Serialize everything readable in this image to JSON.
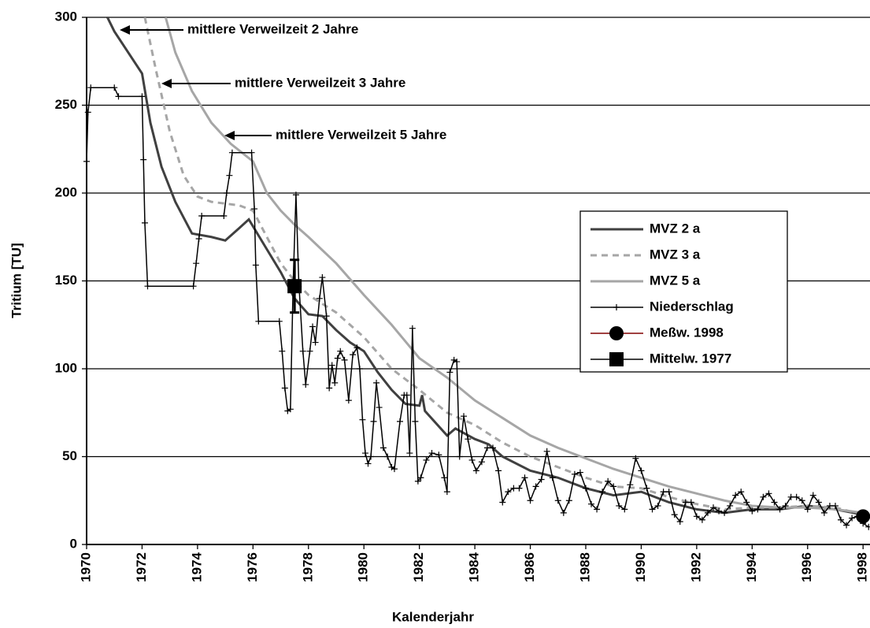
{
  "chart_data": {
    "type": "line",
    "x_label": "Kalenderjahr",
    "y_label": "Tritium [TU]",
    "xlim": [
      1970,
      1998.25
    ],
    "ylim": [
      0,
      300
    ],
    "xticks": [
      1970,
      1972,
      1974,
      1976,
      1978,
      1980,
      1982,
      1984,
      1986,
      1988,
      1990,
      1992,
      1994,
      1996,
      1998
    ],
    "yticks": [
      0,
      50,
      100,
      150,
      200,
      250,
      300
    ],
    "grid": true,
    "legend": "right",
    "annotations": [
      {
        "text": "mittlere Verweilzeit 2 Jahre"
      },
      {
        "text": "mittlere Verweilzeit 3 Jahre"
      },
      {
        "text": "mittlere Verweilzeit 5 Jahre"
      }
    ],
    "series": [
      {
        "name": "MVZ 2 a",
        "color": "#404040",
        "dash": "solid",
        "x": [
          1970.75,
          1971.0,
          1971.5,
          1972.0,
          1972.3,
          1972.7,
          1973.2,
          1973.8,
          1974.5,
          1975.0,
          1975.5,
          1975.85,
          1976.5,
          1977.0,
          1977.5,
          1978.0,
          1978.5,
          1979.0,
          1979.5,
          1980.0,
          1980.5,
          1981.0,
          1981.5,
          1982.0,
          1982.1,
          1982.2,
          1983.0,
          1983.3,
          1984.0,
          1984.5,
          1985.0,
          1986.0,
          1987.0,
          1988.0,
          1989.0,
          1990.0,
          1991.0,
          1992.0,
          1993.0,
          1994.0,
          1995.0,
          1996.0,
          1997.0,
          1998.0
        ],
        "values": [
          300,
          292,
          280,
          268,
          240,
          215,
          195,
          177,
          175,
          173,
          180,
          185,
          168,
          155,
          140,
          131,
          130,
          122,
          115,
          110,
          98,
          88,
          80,
          79,
          85,
          76,
          62,
          66,
          60,
          57,
          50,
          42,
          38,
          32,
          28,
          30,
          24,
          20,
          18,
          20,
          20,
          22,
          20,
          17
        ]
      },
      {
        "name": "MVZ 3 a",
        "color": "#a6a6a6",
        "dash": "dash",
        "x": [
          1972.1,
          1972.5,
          1973.0,
          1973.5,
          1974.0,
          1974.5,
          1975.0,
          1975.5,
          1976.0,
          1976.5,
          1977.0,
          1977.5,
          1978.0,
          1979.0,
          1980.0,
          1981.0,
          1982.0,
          1983.0,
          1984.0,
          1985.0,
          1986.0,
          1987.0,
          1988.0,
          1989.0,
          1990.0,
          1991.0,
          1992.0,
          1993.0,
          1994.0,
          1995.0,
          1996.0,
          1997.0,
          1998.0
        ],
        "values": [
          300,
          270,
          235,
          210,
          198,
          195,
          194,
          193,
          190,
          175,
          160,
          150,
          142,
          132,
          118,
          100,
          88,
          75,
          68,
          58,
          50,
          44,
          38,
          33,
          32,
          27,
          23,
          20,
          21,
          21,
          22,
          21,
          17
        ]
      },
      {
        "name": "MVZ 5 a",
        "color": "#a6a6a6",
        "dash": "solid",
        "x": [
          1972.85,
          1973.2,
          1973.8,
          1974.5,
          1975.2,
          1976.0,
          1976.5,
          1977.0,
          1977.5,
          1978.0,
          1979.0,
          1980.0,
          1981.0,
          1982.0,
          1983.0,
          1984.0,
          1985.0,
          1986.0,
          1987.0,
          1988.0,
          1989.0,
          1990.0,
          1991.0,
          1992.0,
          1993.0,
          1994.0,
          1995.0,
          1996.0,
          1997.0,
          1998.0
        ],
        "values": [
          300,
          280,
          258,
          240,
          228,
          218,
          200,
          190,
          182,
          175,
          160,
          142,
          125,
          106,
          95,
          82,
          72,
          62,
          55,
          49,
          43,
          38,
          33,
          29,
          25,
          22,
          21,
          21,
          20,
          18
        ]
      },
      {
        "name": "Niederschlag",
        "color": "#000000",
        "marker": "plus",
        "x": [
          1970.0,
          1970.05,
          1970.15,
          1971.0,
          1971.15,
          1972.0,
          1972.05,
          1972.1,
          1972.2,
          1973.85,
          1973.95,
          1974.05,
          1974.15,
          1974.95,
          1975.05,
          1975.15,
          1975.25,
          1975.95,
          1976.05,
          1976.1,
          1976.2,
          1976.95,
          1977.05,
          1977.15,
          1977.25,
          1977.35,
          1977.45,
          1977.55,
          1977.65,
          1977.8,
          1977.9,
          1978.05,
          1978.15,
          1978.25,
          1978.4,
          1978.5,
          1978.65,
          1978.75,
          1978.85,
          1978.95,
          1979.05,
          1979.15,
          1979.3,
          1979.45,
          1979.6,
          1979.75,
          1979.85,
          1979.95,
          1980.05,
          1980.15,
          1980.25,
          1980.35,
          1980.45,
          1980.55,
          1980.7,
          1980.85,
          1981.0,
          1981.1,
          1981.3,
          1981.45,
          1981.55,
          1981.65,
          1981.75,
          1981.85,
          1981.95,
          1982.05,
          1982.25,
          1982.45,
          1982.7,
          1982.9,
          1983.0,
          1983.1,
          1983.25,
          1983.35,
          1983.45,
          1983.6,
          1983.75,
          1983.9,
          1984.05,
          1984.25,
          1984.45,
          1984.65,
          1984.85,
          1985.0,
          1985.2,
          1985.4,
          1985.6,
          1985.8,
          1986.0,
          1986.2,
          1986.4,
          1986.6,
          1986.8,
          1987.0,
          1987.2,
          1987.4,
          1987.6,
          1987.8,
          1988.0,
          1988.2,
          1988.4,
          1988.6,
          1988.8,
          1989.0,
          1989.2,
          1989.4,
          1989.6,
          1989.8,
          1990.0,
          1990.2,
          1990.4,
          1990.6,
          1990.8,
          1991.0,
          1991.2,
          1991.4,
          1991.6,
          1991.8,
          1992.0,
          1992.2,
          1992.4,
          1992.6,
          1992.8,
          1993.0,
          1993.2,
          1993.4,
          1993.6,
          1993.8,
          1994.0,
          1994.2,
          1994.4,
          1994.6,
          1994.8,
          1995.0,
          1995.2,
          1995.4,
          1995.6,
          1995.8,
          1996.0,
          1996.2,
          1996.4,
          1996.6,
          1996.8,
          1997.0,
          1997.2,
          1997.4,
          1997.6,
          1997.8,
          1998.0,
          1998.2
        ],
        "values": [
          218,
          246,
          260,
          260,
          255,
          255,
          219,
          183,
          147,
          147,
          160,
          174,
          187,
          187,
          200,
          210,
          223,
          223,
          191,
          159,
          127,
          127,
          110,
          89,
          76,
          77,
          150,
          199,
          150,
          110,
          91,
          110,
          124,
          115,
          140,
          152,
          130,
          89,
          102,
          92,
          106,
          110,
          105,
          82,
          108,
          112,
          100,
          71,
          52,
          46,
          50,
          70,
          92,
          78,
          55,
          50,
          44,
          43,
          70,
          85,
          85,
          52,
          123,
          70,
          36,
          38,
          48,
          52,
          51,
          38,
          30,
          98,
          105,
          104,
          50,
          73,
          60,
          48,
          42,
          47,
          55,
          55,
          42,
          24,
          30,
          32,
          32,
          38,
          25,
          33,
          37,
          53,
          38,
          25,
          18,
          25,
          40,
          41,
          32,
          23,
          20,
          30,
          36,
          33,
          22,
          20,
          34,
          49,
          42,
          32,
          20,
          22,
          30,
          30,
          17,
          13,
          24,
          24,
          16,
          14,
          18,
          21,
          19,
          18,
          22,
          28,
          30,
          24,
          19,
          20,
          27,
          29,
          24,
          20,
          22,
          27,
          27,
          25,
          20,
          28,
          24,
          18,
          22,
          22,
          14,
          11,
          15,
          16,
          12,
          10
        ]
      },
      {
        "name": "Meßw. 1998",
        "color": "#000000",
        "line_color": "#800000",
        "marker": "circle",
        "x": [
          1998.0
        ],
        "values": [
          16
        ]
      },
      {
        "name": "Mittelw. 1977",
        "color": "#000000",
        "marker": "square",
        "x": [
          1977.5
        ],
        "values": [
          147
        ],
        "errors": [
          15
        ]
      }
    ]
  }
}
